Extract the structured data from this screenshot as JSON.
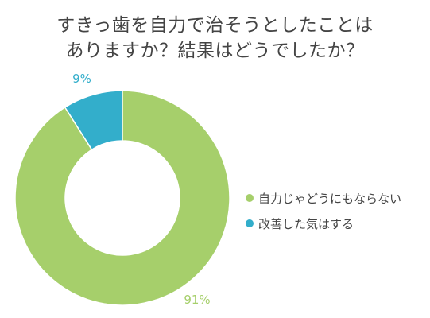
{
  "chart_data": {
    "type": "pie",
    "donut": true,
    "title_lines": [
      "すきっ歯を自力で治そうとしたことは",
      "ありますか？結果はどうでしたか？"
    ],
    "slices": [
      {
        "label": "自力じゃどうにもならない",
        "value": 91,
        "display": "91%",
        "color": "#a6cf6b",
        "label_color": "#a6cf6b"
      },
      {
        "label": "改善した気はする",
        "value": 9,
        "display": "9%",
        "color": "#33aecb",
        "label_color": "#33aecb"
      }
    ],
    "start_angle_deg": 0,
    "direction": "clockwise",
    "legend_position": "right"
  }
}
